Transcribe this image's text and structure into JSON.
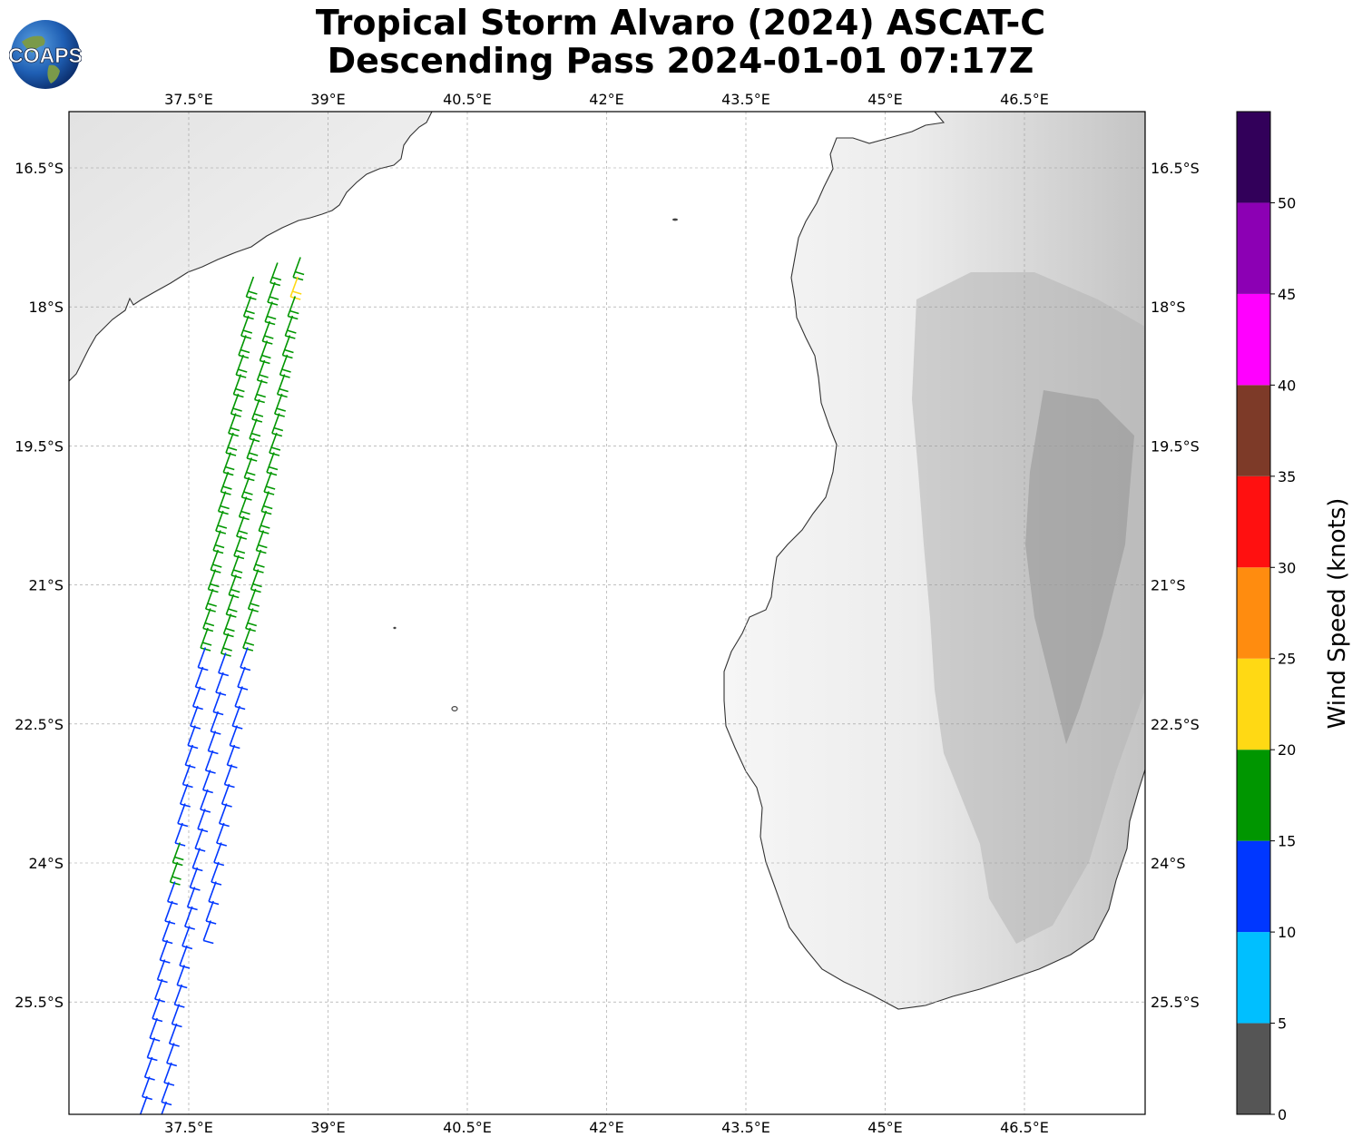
{
  "title": {
    "line1": "Tropical Storm Alvaro (2024) ASCAT-C",
    "line2": "Descending Pass 2024-01-01 07:17Z"
  },
  "logo": {
    "text": "COAPS"
  },
  "map": {
    "lon_range": [
      36.2,
      47.8
    ],
    "lat_range": [
      -26.7,
      -15.9
    ],
    "lon_ticks": [
      "37.5°E",
      "39°E",
      "40.5°E",
      "42°E",
      "43.5°E",
      "45°E",
      "46.5°E"
    ],
    "lat_ticks": [
      "16.5°S",
      "18°S",
      "19.5°S",
      "21°S",
      "22.5°S",
      "24°S",
      "25.5°S"
    ],
    "gridlines": true,
    "land_shading": "grayscale elevation",
    "landmasses": [
      "Mozambique coast (west)",
      "Madagascar (east)"
    ]
  },
  "colorbar": {
    "label": "Wind Speed (knots)",
    "tick_labels": [
      "0",
      "5",
      "10",
      "15",
      "20",
      "25",
      "30",
      "35",
      "40",
      "45",
      "50"
    ],
    "bins": [
      {
        "min": 0,
        "max": 5,
        "color": "#555555"
      },
      {
        "min": 5,
        "max": 10,
        "color": "#00bfff"
      },
      {
        "min": 10,
        "max": 15,
        "color": "#0037ff"
      },
      {
        "min": 15,
        "max": 20,
        "color": "#009600"
      },
      {
        "min": 20,
        "max": 25,
        "color": "#ffd914"
      },
      {
        "min": 25,
        "max": 30,
        "color": "#ff8c0f"
      },
      {
        "min": 30,
        "max": 35,
        "color": "#ff1010"
      },
      {
        "min": 35,
        "max": 40,
        "color": "#7d3a28"
      },
      {
        "min": 40,
        "max": 45,
        "color": "#ff00ff"
      },
      {
        "min": 45,
        "max": 50,
        "color": "#8c00b4"
      },
      {
        "min": 50,
        "max": 55,
        "color": "#32005a"
      }
    ]
  }
}
